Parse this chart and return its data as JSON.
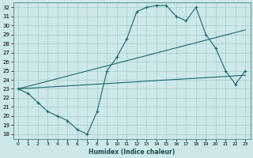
{
  "xlabel": "Humidex (Indice chaleur)",
  "bg_color": "#cce8e8",
  "grid_color": "#aacccc",
  "line_color": "#1a6b6b",
  "xlim": [
    -0.5,
    23.5
  ],
  "ylim": [
    17.5,
    32.5
  ],
  "xticks": [
    0,
    1,
    2,
    3,
    4,
    5,
    6,
    7,
    8,
    9,
    10,
    11,
    12,
    13,
    14,
    15,
    16,
    17,
    18,
    19,
    20,
    21,
    22,
    23
  ],
  "yticks": [
    18,
    19,
    20,
    21,
    22,
    23,
    24,
    25,
    26,
    27,
    28,
    29,
    30,
    31,
    32
  ],
  "curve1_x": [
    0,
    1,
    2,
    3,
    4,
    5,
    6,
    7,
    8,
    9,
    10,
    11,
    12,
    13,
    14,
    15,
    16,
    17,
    18,
    19,
    20,
    21,
    22,
    23
  ],
  "curve1_y": [
    23.0,
    22.5,
    21.5,
    20.5,
    20.0,
    19.5,
    18.5,
    18.0,
    20.5,
    25.0,
    26.5,
    28.5,
    31.5,
    32.0,
    32.2,
    32.2,
    31.0,
    30.5,
    32.0,
    29.0,
    27.5,
    25.0,
    23.5,
    25.0
  ],
  "line1_x": [
    0,
    23
  ],
  "line1_y": [
    23.0,
    29.5
  ],
  "line2_x": [
    0,
    23
  ],
  "line2_y": [
    23.0,
    24.5
  ]
}
